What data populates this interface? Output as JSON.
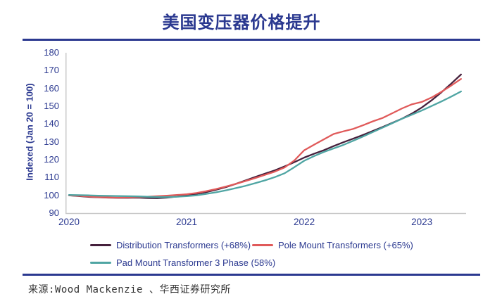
{
  "page": {
    "title": "美国变压器价格提升",
    "source": "来源:Wood Mackenzie 、华西证券研究所"
  },
  "colors": {
    "accent_navy": "#2B3990",
    "axis_gray": "#C9C9C9",
    "series_distribution": "#45203C",
    "series_pole": "#E05A5A",
    "series_pad": "#4FA5A3"
  },
  "chart_data": {
    "type": "line",
    "title": "美国变压器价格提升",
    "xlabel": "",
    "ylabel": "Indexed (Jan 20 = 100)",
    "ylim": [
      90,
      180
    ],
    "y_ticks": [
      90,
      100,
      110,
      120,
      130,
      140,
      150,
      160,
      170,
      180
    ],
    "x_tick_labels": [
      "2020",
      "2021",
      "2022",
      "2023"
    ],
    "x_tick_indices": [
      0,
      12,
      24,
      36
    ],
    "grid": false,
    "legend_position": "bottom",
    "x": [
      "2020-01",
      "2020-02",
      "2020-03",
      "2020-04",
      "2020-05",
      "2020-06",
      "2020-07",
      "2020-08",
      "2020-09",
      "2020-10",
      "2020-11",
      "2020-12",
      "2021-01",
      "2021-02",
      "2021-03",
      "2021-04",
      "2021-05",
      "2021-06",
      "2021-07",
      "2021-08",
      "2021-09",
      "2021-10",
      "2021-11",
      "2021-12",
      "2022-01",
      "2022-02",
      "2022-03",
      "2022-04",
      "2022-05",
      "2022-06",
      "2022-07",
      "2022-08",
      "2022-09",
      "2022-10",
      "2022-11",
      "2022-12",
      "2023-01",
      "2023-02",
      "2023-03",
      "2023-04",
      "2023-05"
    ],
    "series": [
      {
        "name": "Distribution Transformers (+68%)",
        "color": "#45203C",
        "values": [
          100.0,
          99.6,
          99.1,
          98.9,
          98.7,
          98.6,
          98.6,
          98.7,
          98.5,
          98.4,
          98.7,
          99.3,
          100.1,
          100.8,
          101.8,
          103.1,
          104.6,
          106.4,
          108.3,
          110.3,
          112.2,
          114.0,
          116.2,
          118.6,
          121.2,
          123.3,
          125.3,
          127.6,
          129.8,
          131.8,
          133.9,
          136.1,
          138.3,
          140.7,
          143.1,
          145.9,
          149.3,
          153.3,
          157.8,
          162.7,
          167.8
        ]
      },
      {
        "name": "Pole Mount Transformers (+65%)",
        "color": "#E05A5A",
        "values": [
          100.0,
          99.7,
          99.3,
          99.0,
          98.8,
          98.7,
          98.8,
          99.0,
          99.2,
          99.5,
          99.8,
          100.2,
          100.6,
          101.3,
          102.3,
          103.5,
          104.9,
          106.4,
          108.0,
          109.7,
          111.5,
          113.3,
          115.6,
          119.6,
          125.3,
          128.4,
          131.4,
          134.4,
          135.9,
          137.3,
          139.3,
          141.5,
          143.4,
          146.1,
          148.8,
          151.1,
          152.4,
          154.9,
          158.1,
          161.6,
          165.3
        ]
      },
      {
        "name": "Pad Mount Transformer 3 Phase (58%)",
        "color": "#4FA5A3",
        "values": [
          100.2,
          100.1,
          100.0,
          99.8,
          99.7,
          99.6,
          99.5,
          99.4,
          99.2,
          99.0,
          99.0,
          99.2,
          99.5,
          100.0,
          100.8,
          101.7,
          102.8,
          104.0,
          105.3,
          106.8,
          108.4,
          110.2,
          112.4,
          115.8,
          119.4,
          122.0,
          124.3,
          126.3,
          128.3,
          130.6,
          133.0,
          135.5,
          138.0,
          140.5,
          143.0,
          145.3,
          147.6,
          150.1,
          152.7,
          155.4,
          158.3
        ]
      }
    ]
  }
}
